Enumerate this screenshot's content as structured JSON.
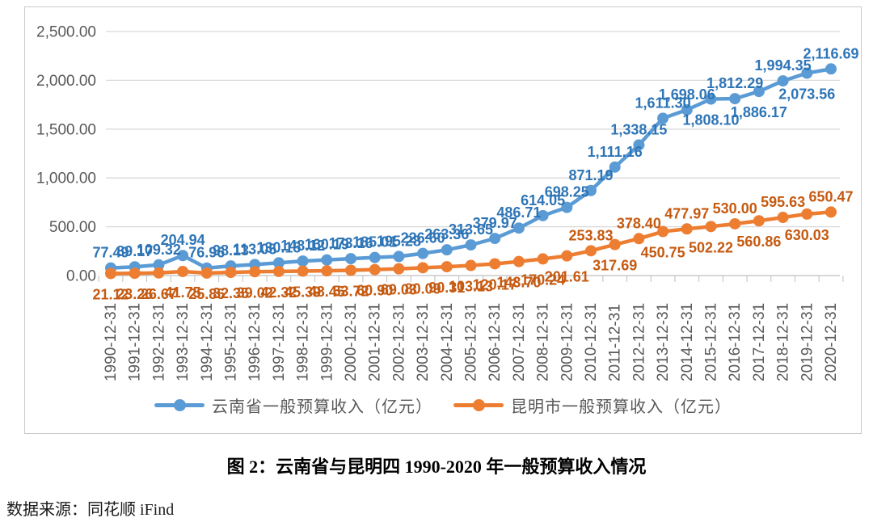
{
  "caption": "图 2：云南省与昆明四 1990-2020 年一般预算收入情况",
  "source": "数据来源：同花顺 iFind",
  "colors": {
    "yunnan_line": "#5B9BD5",
    "yunnan_label": "#2E75B6",
    "kunming_line": "#ED7D31",
    "kunming_label": "#C55A11",
    "axis_text": "#595959",
    "gridline": "#D9D9D9",
    "axis_line": "#BFBFBF",
    "figure_border": "#C9C9C9"
  },
  "chart_data": {
    "type": "line",
    "title": "",
    "xlabel": "",
    "ylabel": "",
    "ylim": [
      0,
      2500
    ],
    "grid": "horizontal",
    "legend_position": "bottom",
    "y_tick_values": [
      0,
      500,
      1000,
      1500,
      2000,
      2500
    ],
    "y_tick_labels": [
      "0.00",
      "500.00",
      "1,000.00",
      "1,500.00",
      "2,000.00",
      "2,500.00"
    ],
    "x_tick_labels": [
      "1990-12-31",
      "1991-12-31",
      "1992-12-31",
      "1993-12-31",
      "1994-12-31",
      "1995-12-31",
      "1996-12-31",
      "1997-12-31",
      "1998-12-31",
      "1999-12-31",
      "2000-12-31",
      "2001-12-31",
      "2002-12-31",
      "2003-12-31",
      "2004-12-31",
      "2005-12-31",
      "2006-12-31",
      "2007-12-31",
      "2008-12-31",
      "2009-12-31",
      "2010-12-31",
      "2011-12-31",
      "2012-12-31",
      "2013-12-31",
      "2014-12-31",
      "2015-12-31",
      "2016-12-31",
      "2017-12-31",
      "2018-12-31",
      "2019-12-31",
      "2020-12-31"
    ],
    "series": [
      {
        "name": "云南省一般预算收入（亿元）",
        "color": "#5B9BD5",
        "label_color": "#2E75B6",
        "values": [
          77.49,
          89.17,
          109.32,
          204.94,
          76.96,
          98.13,
          113.05,
          130.15,
          148.12,
          160.19,
          173.16,
          185.01,
          195.28,
          226.6,
          263.36,
          313.65,
          379.97,
          486.71,
          614.05,
          698.25,
          871.19,
          1111.16,
          1338.15,
          1611.3,
          1698.06,
          1808.1,
          1812.29,
          1886.17,
          1994.35,
          2073.56,
          2116.69
        ],
        "labels": [
          "77.49",
          "89.17",
          "109.32",
          "204.94",
          "76.96",
          "98.13",
          "113.05",
          "130.15",
          "148.12",
          "160.19",
          "173.16",
          "185.01",
          "195.28",
          "226.60",
          "263.36",
          "313.65",
          "379.97",
          "486.71",
          "614.05",
          "698.25",
          "871.19",
          "1,111.16",
          "1,338.15",
          "1,611.30",
          "1,698.06",
          "1,808.10",
          "1,812.29",
          "1,886.17",
          "1,994.35",
          "2,073.56",
          "2,116.69"
        ],
        "label_sides": [
          "above",
          "above",
          "above",
          "above",
          "above",
          "above",
          "above",
          "above",
          "above",
          "above",
          "above",
          "above",
          "above",
          "above",
          "above",
          "above",
          "above",
          "above",
          "above",
          "above",
          "above",
          "above",
          "above",
          "above",
          "above",
          "below",
          "above",
          "below",
          "above",
          "below",
          "above"
        ]
      },
      {
        "name": "昆明市一般预算收入（亿元）",
        "color": "#ED7D31",
        "label_color": "#C55A11",
        "values": [
          21.12,
          23.26,
          26.67,
          41.75,
          25.85,
          32.35,
          39.02,
          42.32,
          45.39,
          48.45,
          53.72,
          60.9,
          69.03,
          80.09,
          90.31,
          103.13,
          120.17,
          143.7,
          170.24,
          201.61,
          253.83,
          317.69,
          378.4,
          450.75,
          477.97,
          502.22,
          530.0,
          560.86,
          595.63,
          630.03,
          650.47
        ],
        "labels": [
          "21.12",
          "23.26",
          "26.67",
          "41.75",
          "25.85",
          "32.35",
          "39.02",
          "42.32",
          "45.39",
          "48.45",
          "53.72",
          "60.90",
          "69.03",
          "80.09",
          "90.31",
          "103.13",
          "120.17",
          "143.70",
          "170.24",
          "201.61",
          "253.83",
          "317.69",
          "378.40",
          "450.75",
          "477.97",
          "502.22",
          "530.00",
          "560.86",
          "595.63",
          "630.03",
          "650.47"
        ],
        "label_sides": [
          "below",
          "below",
          "below",
          "below",
          "below",
          "below",
          "below",
          "below",
          "below",
          "below",
          "below",
          "below",
          "below",
          "below",
          "below",
          "below",
          "below",
          "below",
          "below",
          "below",
          "above",
          "below",
          "above",
          "below",
          "above",
          "below",
          "above",
          "below",
          "above",
          "below",
          "above"
        ]
      }
    ]
  }
}
